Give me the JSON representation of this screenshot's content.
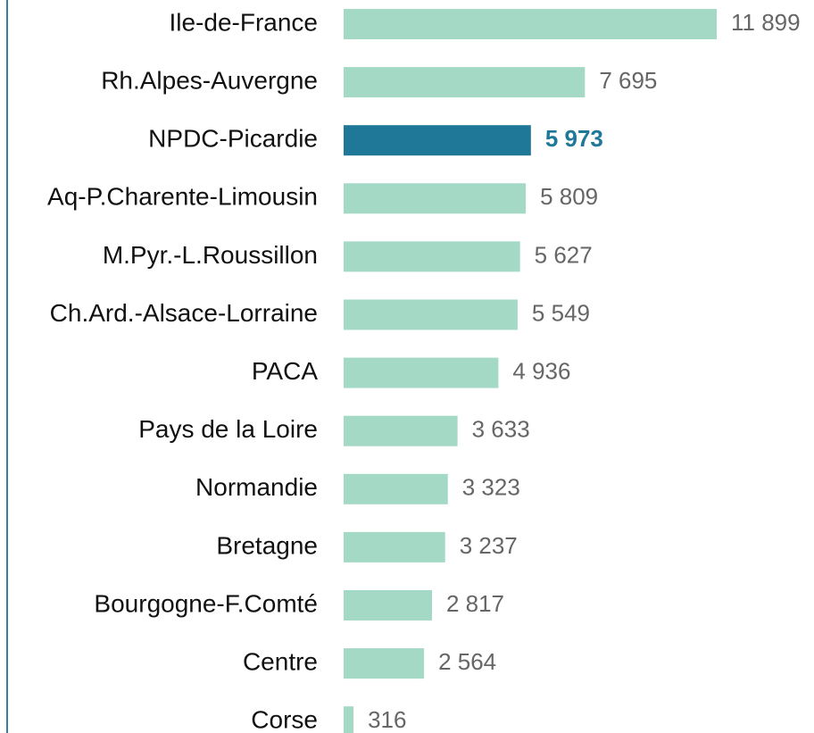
{
  "chart_data": {
    "type": "bar",
    "orientation": "horizontal",
    "categories": [
      "Ile-de-France",
      "Rh.Alpes-Auvergne",
      "NPDC-Picardie",
      "Aq-P.Charente-Limousin",
      "M.Pyr.-L.Roussillon",
      "Ch.Ard.-Alsace-Lorraine",
      "PACA",
      "Pays de la Loire",
      "Normandie",
      "Bretagne",
      "Bourgogne-F.Comté",
      "Centre",
      "Corse"
    ],
    "values": [
      11899,
      7695,
      5973,
      5809,
      5627,
      5549,
      4936,
      3633,
      3323,
      3237,
      2817,
      2564,
      316
    ],
    "value_labels": [
      "11 899",
      "7 695",
      "5 973",
      "5 809",
      "5 627",
      "5 549",
      "4 936",
      "3 633",
      "3 323",
      "3 237",
      "2 817",
      "2 564",
      "316"
    ],
    "color": "#a3d9c5",
    "highlight": 2,
    "highlight_color": "#1f7898"
  }
}
